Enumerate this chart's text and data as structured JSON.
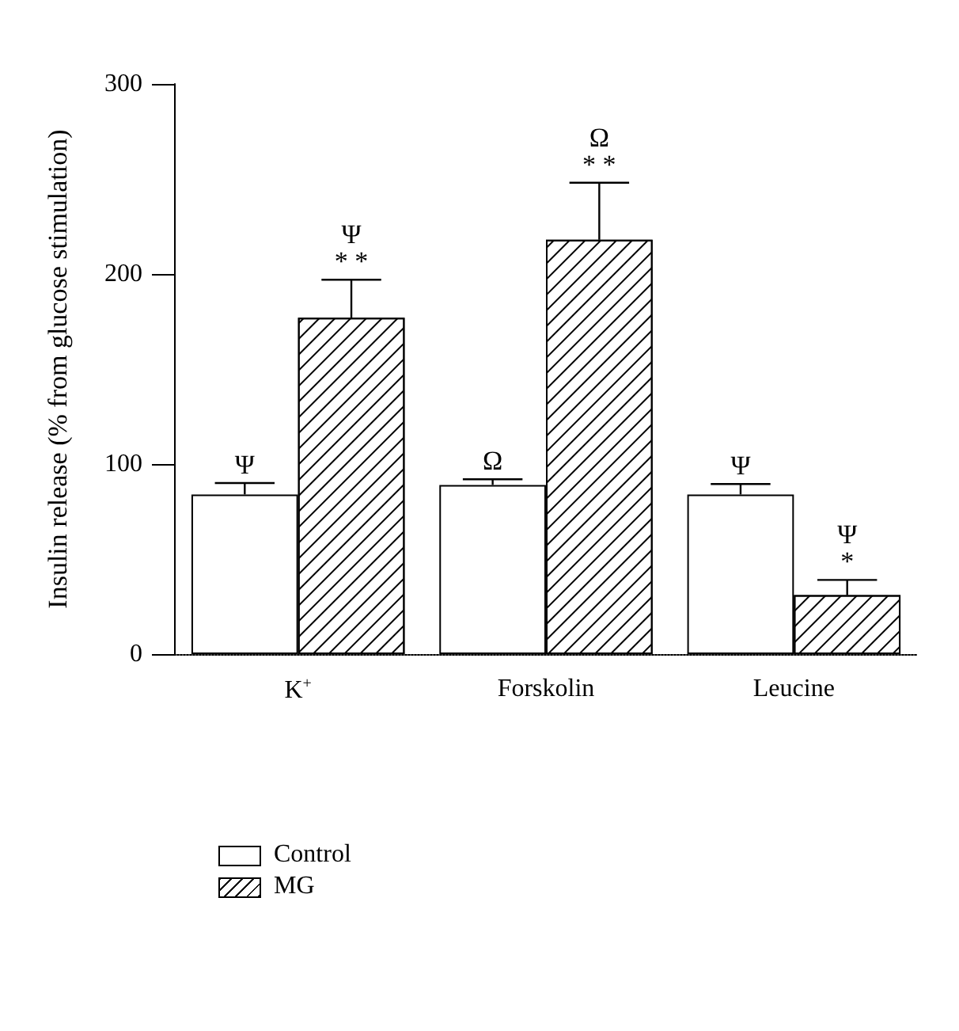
{
  "chart_data": {
    "type": "bar",
    "ylabel": "Insulin release (% from glucose stimulation)",
    "categories": [
      "K$^{+}$",
      "Forskolin",
      "Leucine"
    ],
    "series": [
      {
        "name": "Control",
        "color": "#ffffff",
        "values": [
          84,
          89,
          84
        ],
        "errors": [
          [
            84,
            90
          ],
          [
            89,
            92
          ],
          [
            84,
            89.5
          ]
        ]
      },
      {
        "name": "MG",
        "color": "#ffffff",
        "values": [
          177,
          218,
          31
        ],
        "errors": [
          [
            177,
            197
          ],
          [
            218,
            248
          ],
          [
            31,
            39
          ]
        ]
      }
    ],
    "annotations": [
      {
        "text": "Ψ",
        "x": "K$^{+}$",
        "y": 84
      },
      {
        "text": "Ψ\n* *",
        "x": "K$^{+}$",
        "y": 177
      },
      {
        "text": "Ω",
        "x": "Forskolin",
        "y": 89
      },
      {
        "text": "Ω\n* *",
        "x": "Forskolin",
        "y": 218
      },
      {
        "text": "Ψ",
        "x": "Leucine",
        "y": 84
      },
      {
        "text": "Ψ\n*",
        "x": "Leucine",
        "y": 31
      }
    ],
    "ylim": [
      0,
      300
    ],
    "yticks": [
      0,
      100,
      200,
      300
    ],
    "grid": false,
    "legend": "bottom left"
  }
}
